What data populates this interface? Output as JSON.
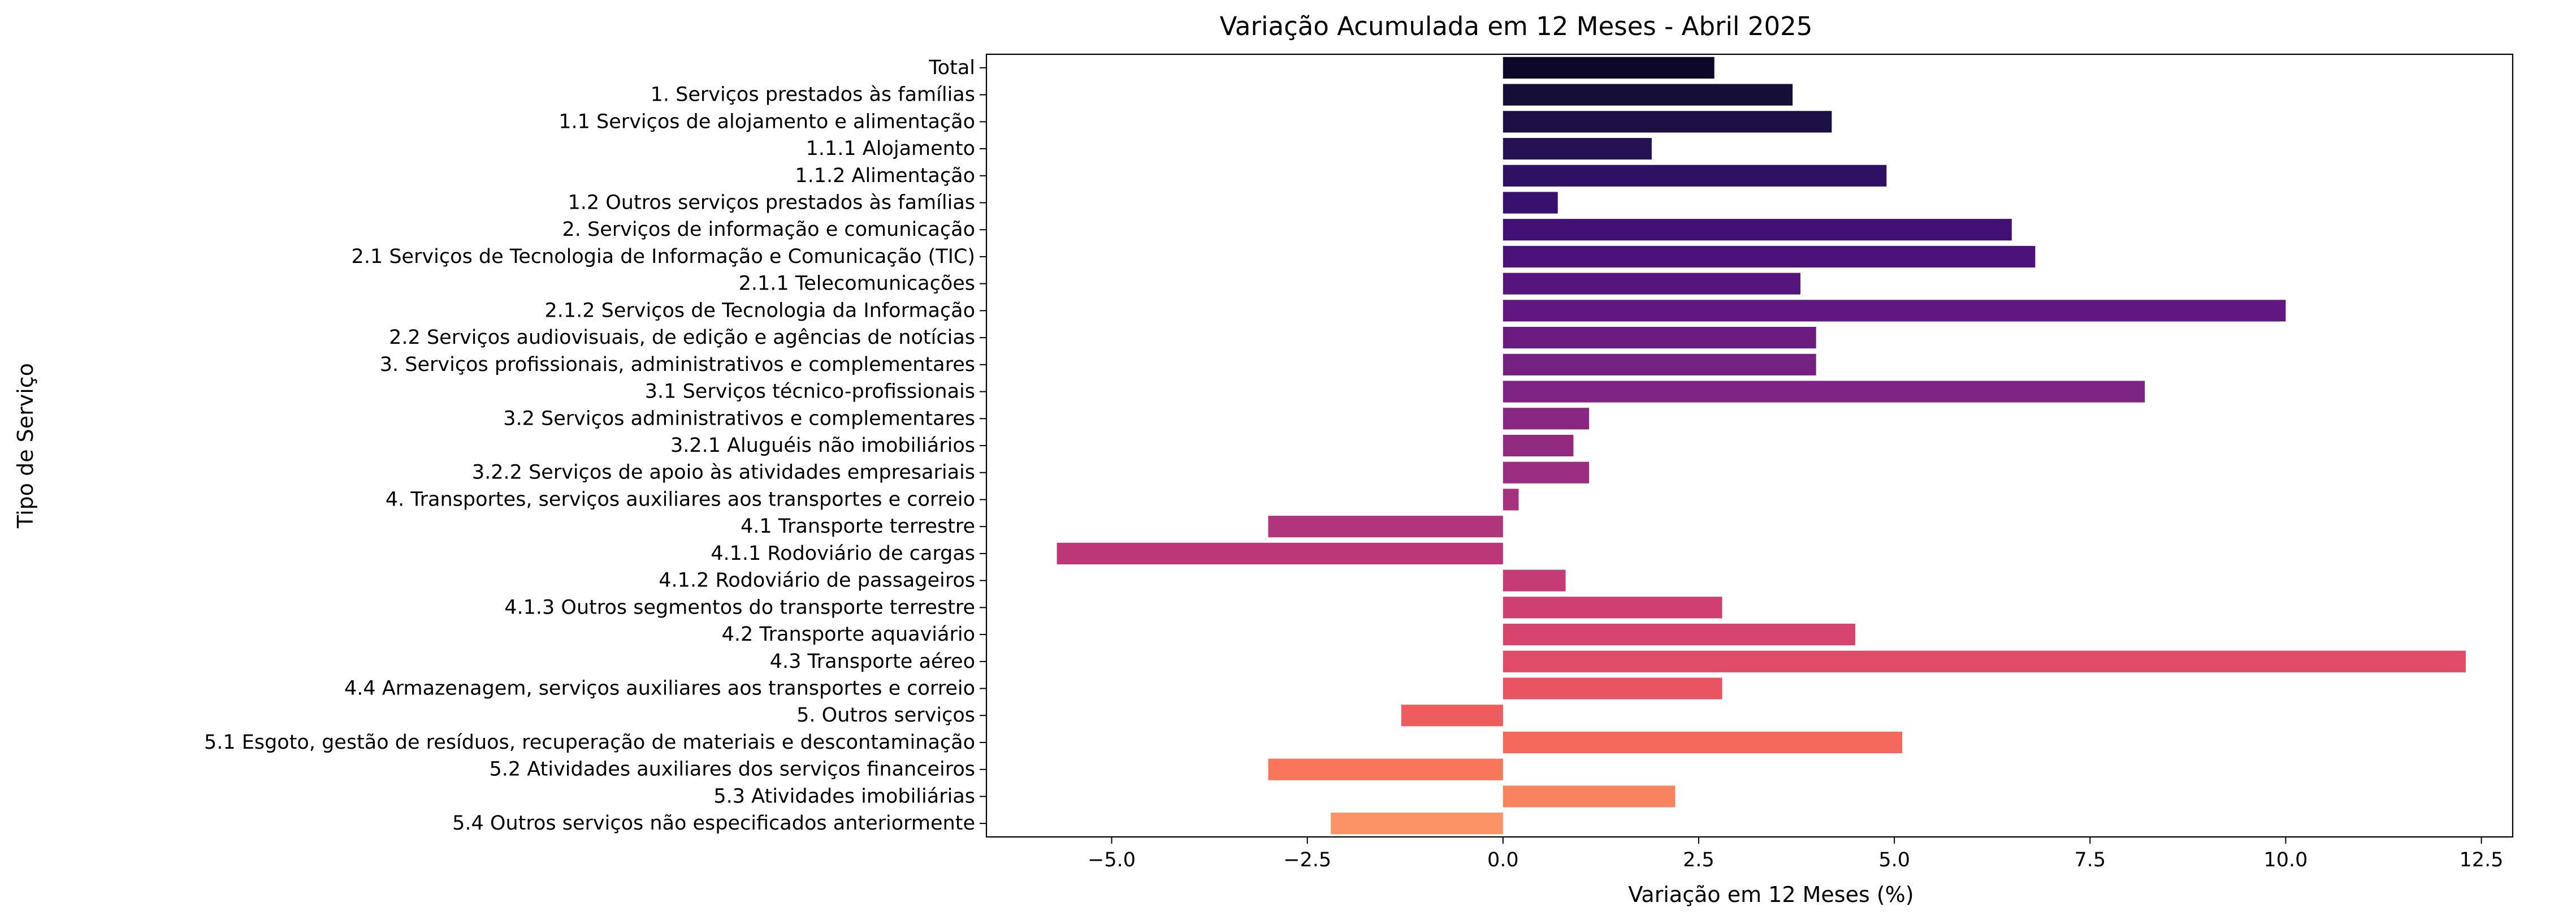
{
  "chart_data": {
    "type": "bar",
    "orientation": "horizontal",
    "title": "Variação Acumulada em 12 Meses - Abril 2025",
    "xlabel": "Variação em 12 Meses (%)",
    "ylabel": "Tipo de Serviço",
    "xlim": [
      -6.6,
      12.9
    ],
    "xticks": [
      -5.0,
      -2.5,
      0.0,
      2.5,
      5.0,
      7.5,
      10.0,
      12.5
    ],
    "xtick_labels": [
      "−5.0",
      "−2.5",
      "0.0",
      "2.5",
      "5.0",
      "7.5",
      "10.0",
      "12.5"
    ],
    "grid": false,
    "palette": "magma",
    "categories": [
      "Total",
      "1. Serviços prestados às famílias",
      "1.1 Serviços de alojamento e alimentação",
      "1.1.1 Alojamento",
      "1.1.2 Alimentação",
      "1.2 Outros serviços prestados às famílias",
      "2. Serviços de informação e comunicação",
      "2.1 Serviços de Tecnologia de Informação e Comunicação (TIC)",
      "2.1.1 Telecomunicações",
      "2.1.2 Serviços de Tecnologia da Informação",
      "2.2 Serviços audiovisuais, de edição e agências de notícias",
      "3. Serviços profissionais, administrativos e complementares",
      "3.1 Serviços técnico-profissionais",
      "3.2 Serviços administrativos e complementares",
      "3.2.1 Aluguéis não imobiliários",
      "3.2.2 Serviços de apoio às atividades empresariais",
      "4. Transportes, serviços auxiliares aos transportes e correio",
      "4.1 Transporte terrestre",
      "4.1.1 Rodoviário de cargas",
      "4.1.2 Rodoviário de passageiros",
      "4.1.3 Outros segmentos do transporte terrestre",
      "4.2 Transporte aquaviário",
      "4.3 Transporte aéreo",
      "4.4 Armazenagem, serviços auxiliares aos transportes e correio",
      "5. Outros serviços",
      "5.1 Esgoto, gestão de resíduos, recuperação de materiais e descontaminação",
      "5.2 Atividades auxiliares dos serviços financeiros",
      "5.3 Atividades imobiliárias",
      "5.4 Outros serviços não especificados anteriormente"
    ],
    "values": [
      2.7,
      3.7,
      4.2,
      1.9,
      4.9,
      0.7,
      6.5,
      6.8,
      3.8,
      10.0,
      4.0,
      4.0,
      8.2,
      1.1,
      0.9,
      1.1,
      0.2,
      -3.0,
      -5.7,
      0.8,
      2.8,
      4.5,
      12.3,
      2.8,
      -1.3,
      5.1,
      -3.0,
      2.2,
      -2.2
    ],
    "colors": [
      "#0d0829",
      "#150e37",
      "#1c1044",
      "#251255",
      "#2f1163",
      "#38106e",
      "#420f75",
      "#4c117a",
      "#56147d",
      "#60177f",
      "#6a1c81",
      "#742181",
      "#7e2482",
      "#882781",
      "#922b80",
      "#9c2e7f",
      "#a7317d",
      "#b1357b",
      "#bb3778",
      "#c53c74",
      "#ce4071",
      "#d8456c",
      "#e04c68",
      "#e85462",
      "#ee5d5d",
      "#f4695c",
      "#f7765c",
      "#fa835f",
      "#fc9366"
    ]
  }
}
